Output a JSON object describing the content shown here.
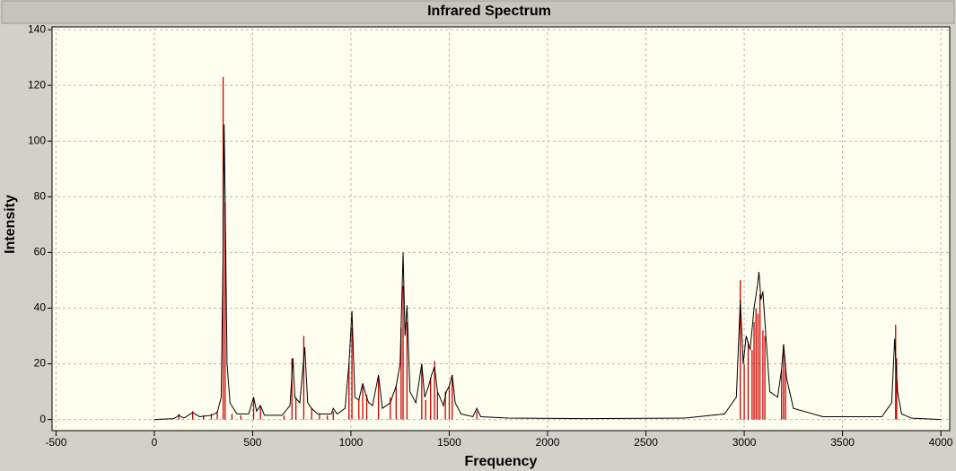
{
  "chart_data": {
    "type": "spectrum",
    "title": "Infrared Spectrum",
    "x_label": "Frequency",
    "y_label": "Intensity",
    "xlim": [
      -520,
      4045
    ],
    "ylim": [
      -4,
      141
    ],
    "xticks": [
      -500,
      0,
      500,
      1000,
      1500,
      2000,
      2500,
      3000,
      3500,
      4000
    ],
    "yticks": [
      0,
      20,
      40,
      60,
      80,
      100,
      120,
      140
    ],
    "grid": true,
    "series": [
      {
        "style": "stick",
        "color": "#cc0000",
        "x": [
          125,
          195,
          250,
          290,
          320,
          350,
          360,
          395,
          440,
          505,
          540,
          660,
          700,
          720,
          760,
          800,
          840,
          880,
          910,
          990,
          1005,
          1040,
          1060,
          1080,
          1140,
          1200,
          1230,
          1255,
          1265,
          1285,
          1360,
          1380,
          1405,
          1425,
          1440,
          1480,
          1500,
          1515,
          1640,
          2980,
          3000,
          3020,
          3040,
          3050,
          3060,
          3070,
          3080,
          3095,
          3105,
          3190,
          3200,
          3210,
          3770,
          3775
        ],
        "values": [
          2,
          3,
          1.5,
          2,
          3,
          123,
          78,
          2,
          1.5,
          8,
          5,
          1.5,
          22,
          8,
          30,
          4,
          2,
          1.5,
          3,
          20,
          33,
          7,
          12,
          9,
          15,
          8,
          12,
          33,
          48,
          35,
          20,
          7,
          15,
          21,
          10,
          10,
          12,
          16,
          3,
          50,
          20,
          28,
          25,
          35,
          40,
          38,
          45,
          32,
          30,
          18,
          27,
          20,
          34,
          22
        ]
      },
      {
        "style": "line",
        "color": "#000000",
        "x": [
          0,
          100,
          125,
          150,
          195,
          230,
          290,
          320,
          340,
          350,
          355,
          360,
          370,
          385,
          420,
          480,
          505,
          520,
          540,
          560,
          650,
          690,
          705,
          715,
          740,
          765,
          780,
          800,
          830,
          900,
          910,
          930,
          970,
          990,
          1005,
          1020,
          1040,
          1060,
          1075,
          1090,
          1110,
          1140,
          1160,
          1200,
          1230,
          1250,
          1265,
          1275,
          1285,
          1300,
          1330,
          1360,
          1375,
          1395,
          1410,
          1425,
          1440,
          1470,
          1485,
          1500,
          1515,
          1530,
          1560,
          1620,
          1640,
          1660,
          1800,
          2200,
          2700,
          2900,
          2960,
          2980,
          2995,
          3010,
          3030,
          3050,
          3065,
          3075,
          3085,
          3095,
          3110,
          3130,
          3170,
          3190,
          3200,
          3215,
          3250,
          3400,
          3700,
          3750,
          3765,
          3780,
          3800,
          3850,
          4000
        ],
        "values": [
          0,
          0.3,
          1.5,
          0.5,
          2.5,
          1,
          1.5,
          2.5,
          8,
          60,
          106,
          80,
          20,
          6,
          2,
          2,
          8,
          3,
          5,
          1.5,
          1.5,
          5,
          22,
          8,
          6,
          26,
          6,
          4,
          2,
          2,
          4,
          2,
          4,
          20,
          39,
          8,
          7,
          13,
          9,
          6,
          5,
          16,
          4,
          6,
          12,
          20,
          60,
          30,
          41,
          10,
          6,
          20,
          8,
          12,
          16,
          19,
          10,
          5,
          10,
          12,
          16,
          6,
          2,
          1,
          4,
          1,
          0.5,
          0.3,
          0.5,
          2,
          8,
          43,
          20,
          30,
          25,
          40,
          47,
          53,
          43,
          46,
          30,
          10,
          8,
          18,
          27,
          15,
          4,
          1,
          1,
          6,
          29,
          10,
          2,
          0.5,
          0
        ]
      }
    ]
  }
}
